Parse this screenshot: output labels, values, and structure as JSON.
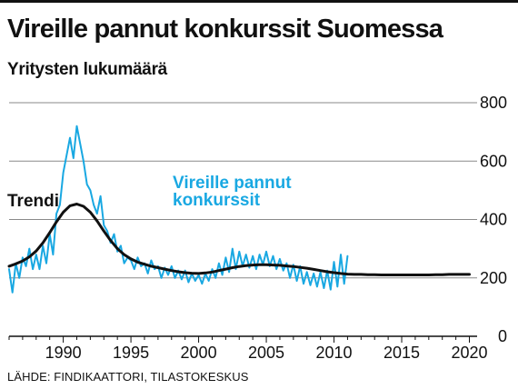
{
  "title": "Vireille pannut konkurssit Suomessa",
  "subtitle": "Yritysten lukumäärä",
  "source": "LÄHDE: FINDIKAATTORI, TILASTOKESKUS",
  "colors": {
    "series": "#19a8e2",
    "trend": "#111111",
    "grid": "#8a8a8a",
    "axis": "#111111"
  },
  "chart_data": {
    "type": "line",
    "title": "Vireille pannut konkurssit Suomessa",
    "ylabel": "Yritysten lukumäärä",
    "xlabel": "",
    "xlim": [
      1986.0,
      2020.1
    ],
    "ylim": [
      0,
      800
    ],
    "x_ticks": [
      1990,
      1995,
      2000,
      2005,
      2010,
      2015,
      2020
    ],
    "y_ticks": [
      0,
      200,
      400,
      600,
      800
    ],
    "grid": "horizontal",
    "annotations": {
      "series_label_line1": "Vireille pannut",
      "series_label_line2": "konkurssit",
      "trend_label": "Trendi"
    },
    "series": [
      {
        "label": "Vireille pannut konkurssit",
        "color": "#19a8e2",
        "start": 1986.0,
        "step": 0.25,
        "values": [
          230,
          150,
          250,
          200,
          270,
          240,
          300,
          230,
          280,
          230,
          310,
          250,
          350,
          280,
          420,
          450,
          560,
          620,
          680,
          610,
          720,
          660,
          600,
          520,
          500,
          450,
          420,
          480,
          380,
          360,
          320,
          350,
          290,
          310,
          250,
          270,
          260,
          230,
          270,
          240,
          250,
          215,
          260,
          230,
          240,
          200,
          235,
          210,
          240,
          200,
          225,
          195,
          225,
          185,
          215,
          190,
          210,
          180,
          215,
          190,
          230,
          200,
          250,
          210,
          270,
          220,
          300,
          230,
          290,
          240,
          280,
          235,
          275,
          230,
          280,
          245,
          290,
          240,
          275,
          230,
          265,
          225,
          250,
          200,
          245,
          190,
          240,
          180,
          220,
          175,
          215,
          170,
          220,
          165,
          225,
          160,
          255,
          170,
          280,
          180,
          275
        ]
      },
      {
        "label": "Trendi",
        "color": "#111111",
        "start": 1986.0,
        "step": 0.5,
        "values": [
          240,
          248,
          258,
          272,
          292,
          320,
          355,
          392,
          425,
          447,
          453,
          445,
          425,
          395,
          360,
          328,
          300,
          280,
          265,
          254,
          247,
          240,
          235,
          230,
          225,
          221,
          218,
          216,
          215,
          217,
          220,
          225,
          230,
          235,
          239,
          242,
          244,
          245,
          245,
          244,
          243,
          241,
          239,
          236,
          233,
          229,
          225,
          221,
          218,
          215,
          213,
          212,
          212,
          211,
          211,
          210,
          210,
          210,
          210,
          210,
          210,
          210,
          210,
          211,
          211,
          212,
          212,
          212,
          212
        ]
      }
    ]
  }
}
